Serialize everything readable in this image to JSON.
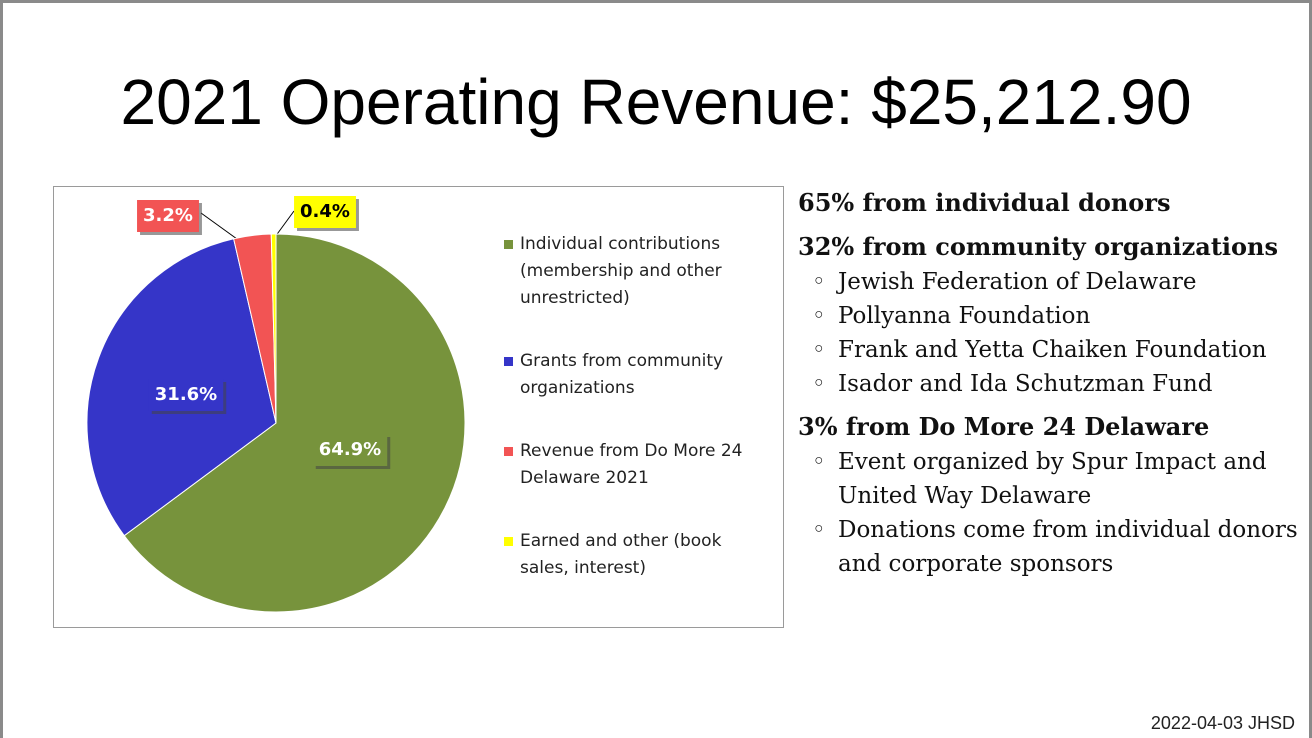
{
  "title": "2021 Operating Revenue: $25,212.90",
  "chart_data": {
    "type": "pie",
    "categories": [
      "Individual contributions (membership and other unrestricted)",
      "Grants from community organizations",
      "Revenue from Do More 24 Delaware 2021",
      "Earned and other (book sales, interest)"
    ],
    "values": [
      64.9,
      31.6,
      3.2,
      0.4
    ],
    "value_labels": [
      "64.9%",
      "31.6%",
      "3.2%",
      "0.4%"
    ],
    "colors": [
      "#77933c",
      "#3535c8",
      "#f25454",
      "#ffff00"
    ],
    "legend": "right"
  },
  "sections": [
    {
      "heading": "65%  from individual donors",
      "items": []
    },
    {
      "heading": "32% from community organizations",
      "items": [
        "Jewish Federation of Delaware",
        "Pollyanna Foundation",
        "Frank and Yetta Chaiken Foundation",
        "Isador and Ida Schutzman Fund"
      ]
    },
    {
      "heading": "3%  from Do More 24 Delaware",
      "items": [
        "Event organized by Spur Impact and United Way Delaware",
        "Donations come from individual donors and corporate sponsors"
      ]
    }
  ],
  "footer": "2022-04-03 JHSD"
}
